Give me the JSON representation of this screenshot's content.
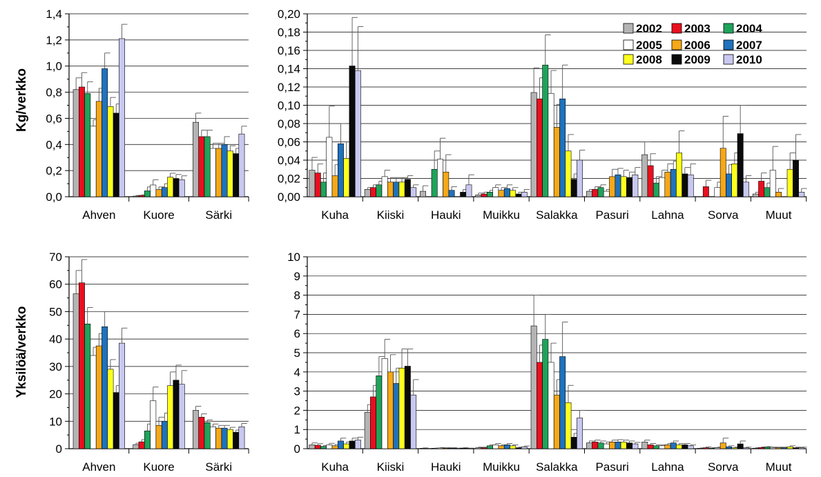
{
  "years": [
    "2002",
    "2003",
    "2004",
    "2005",
    "2006",
    "2007",
    "2008",
    "2009",
    "2010"
  ],
  "year_colors": [
    "#b4b4b4",
    "#e8101e",
    "#1fa35a",
    "#ffffff",
    "#f5a818",
    "#1f72bc",
    "#ffff1e",
    "#0a0a0a",
    "#c8c8f0"
  ],
  "ylabel_top": "Kg/verkko",
  "ylabel_bottom": "Yksilöä/verkko",
  "chart_data": [
    {
      "type": "bar",
      "id": "A",
      "categories": [
        "Ahven",
        "Kuore",
        "Särki"
      ],
      "ylim": [
        0,
        1.4
      ],
      "yticks": [
        "0,0",
        "0,2",
        "0,4",
        "0,6",
        "0,8",
        "1,0",
        "1,2",
        "1,4"
      ],
      "series": [
        {
          "name": "2002",
          "values": [
            0.82,
            0.005,
            0.57
          ],
          "errors": [
            0.09,
            0.005,
            0.07
          ]
        },
        {
          "name": "2003",
          "values": [
            0.84,
            0.01,
            0.46
          ],
          "errors": [
            0.11,
            0.005,
            0.05
          ]
        },
        {
          "name": "2004",
          "values": [
            0.79,
            0.045,
            0.46
          ],
          "errors": [
            0.09,
            0.03,
            0.05
          ]
        },
        {
          "name": "2005",
          "values": [
            0.54,
            0.09,
            0.37
          ],
          "errors": [
            0.05,
            0.04,
            0.04
          ]
        },
        {
          "name": "2006",
          "values": [
            0.73,
            0.055,
            0.37
          ],
          "errors": [
            0.1,
            0.02,
            0.04
          ]
        },
        {
          "name": "2007",
          "values": [
            0.98,
            0.07,
            0.4
          ],
          "errors": [
            0.12,
            0.03,
            0.06
          ]
        },
        {
          "name": "2008",
          "values": [
            0.69,
            0.15,
            0.35
          ],
          "errors": [
            0.07,
            0.03,
            0.04
          ]
        },
        {
          "name": "2009",
          "values": [
            0.64,
            0.14,
            0.33
          ],
          "errors": [
            0.07,
            0.03,
            0.04
          ]
        },
        {
          "name": "2010",
          "values": [
            1.21,
            0.13,
            0.48
          ],
          "errors": [
            0.11,
            0.03,
            0.06
          ]
        }
      ]
    },
    {
      "type": "bar",
      "id": "B",
      "categories": [
        "Kuha",
        "Kiiski",
        "Hauki",
        "Muikku",
        "Salakka",
        "Pasuri",
        "Lahna",
        "Sorva",
        "Muut"
      ],
      "ylim": [
        0,
        0.2
      ],
      "yticks": [
        "0,00",
        "0,02",
        "0,04",
        "0,06",
        "0,08",
        "0,10",
        "0,12",
        "0,14",
        "0,16",
        "0,18",
        "0,20"
      ],
      "legend": "top-right",
      "series": [
        {
          "name": "2002",
          "values": [
            0.029,
            0.008,
            0.006,
            0.002,
            0.114,
            0.006,
            0.046,
            0,
            0.003
          ],
          "errors": [
            0.014,
            0.002,
            0.006,
            0.002,
            0.027,
            0.002,
            0.014,
            0,
            0.002
          ]
        },
        {
          "name": "2003",
          "values": [
            0.026,
            0.01,
            0,
            0.003,
            0.107,
            0.008,
            0.034,
            0.011,
            0.017
          ],
          "errors": [
            0.01,
            0.003,
            0,
            0.002,
            0.023,
            0.003,
            0.013,
            0.007,
            0.009
          ]
        },
        {
          "name": "2004",
          "values": [
            0.016,
            0.013,
            0.03,
            0.005,
            0.144,
            0.01,
            0.015,
            0,
            0.01
          ],
          "errors": [
            0.01,
            0.004,
            0.02,
            0.002,
            0.033,
            0.003,
            0.007,
            0,
            0.005
          ]
        },
        {
          "name": "2005",
          "values": [
            0.065,
            0.022,
            0.041,
            0.01,
            0.113,
            0.006,
            0.021,
            0.01,
            0.029
          ],
          "errors": [
            0.034,
            0.007,
            0.023,
            0.003,
            0.025,
            0.002,
            0.008,
            0.006,
            0.026
          ]
        },
        {
          "name": "2006",
          "values": [
            0.023,
            0.016,
            0.027,
            0.007,
            0.076,
            0.022,
            0.027,
            0.053,
            0.005
          ],
          "errors": [
            0.012,
            0.005,
            0.019,
            0.003,
            0.025,
            0.008,
            0.009,
            0.035,
            0.004
          ]
        },
        {
          "name": "2007",
          "values": [
            0.058,
            0.016,
            0.007,
            0.009,
            0.107,
            0.024,
            0.03,
            0.025,
            0
          ],
          "errors": [
            0.022,
            0.005,
            0.004,
            0.004,
            0.037,
            0.007,
            0.009,
            0.01,
            0
          ]
        },
        {
          "name": "2008",
          "values": [
            0.042,
            0.016,
            0,
            0.007,
            0.05,
            0.022,
            0.048,
            0.036,
            0.03
          ],
          "errors": [
            0.018,
            0.005,
            0,
            0.003,
            0.018,
            0.007,
            0.024,
            0.012,
            0.018
          ]
        },
        {
          "name": "2009",
          "values": [
            0.143,
            0.019,
            0.005,
            0.003,
            0.019,
            0.021,
            0.025,
            0.069,
            0.04
          ],
          "errors": [
            0.053,
            0.004,
            0.003,
            0.002,
            0.006,
            0.006,
            0.007,
            0.031,
            0.028
          ]
        },
        {
          "name": "2010",
          "values": [
            0.138,
            0.01,
            0.013,
            0.005,
            0.04,
            0.024,
            0.024,
            0.016,
            0.005
          ],
          "errors": [
            0.048,
            0.003,
            0.011,
            0.003,
            0.011,
            0.008,
            0.012,
            0.007,
            0.004
          ]
        }
      ]
    },
    {
      "type": "bar",
      "id": "C",
      "categories": [
        "Ahven",
        "Kuore",
        "Särki"
      ],
      "ylim": [
        0,
        70
      ],
      "yticks": [
        "0",
        "10",
        "20",
        "30",
        "40",
        "50",
        "60",
        "70"
      ],
      "series": [
        {
          "name": "2002",
          "values": [
            56.5,
            1.5,
            14
          ],
          "errors": [
            8.5,
            0.5,
            1.5
          ]
        },
        {
          "name": "2003",
          "values": [
            60.5,
            2.5,
            11.5
          ],
          "errors": [
            8.5,
            0.8,
            1.2
          ]
        },
        {
          "name": "2004",
          "values": [
            45.5,
            6.5,
            9.5
          ],
          "errors": [
            6,
            2.5,
            1
          ]
        },
        {
          "name": "2005",
          "values": [
            34,
            17.5,
            8
          ],
          "errors": [
            3,
            5,
            1
          ]
        },
        {
          "name": "2006",
          "values": [
            37.5,
            8.5,
            7.5
          ],
          "errors": [
            4.5,
            3,
            1
          ]
        },
        {
          "name": "2007",
          "values": [
            44.5,
            10,
            7.5
          ],
          "errors": [
            5.5,
            3,
            1
          ]
        },
        {
          "name": "2008",
          "values": [
            29,
            23,
            7
          ],
          "errors": [
            3.5,
            5,
            0.8
          ]
        },
        {
          "name": "2009",
          "values": [
            20.5,
            25,
            6
          ],
          "errors": [
            2.5,
            5.5,
            0.8
          ]
        },
        {
          "name": "2010",
          "values": [
            38.5,
            23.5,
            8
          ],
          "errors": [
            5.5,
            5,
            1.2
          ]
        }
      ]
    },
    {
      "type": "bar",
      "id": "D",
      "categories": [
        "Kuha",
        "Kiiski",
        "Hauki",
        "Muikku",
        "Salakka",
        "Pasuri",
        "Lahna",
        "Sorva",
        "Muut"
      ],
      "ylim": [
        0,
        10
      ],
      "yticks": [
        "0",
        "1",
        "2",
        "3",
        "4",
        "5",
        "6",
        "7",
        "8",
        "9",
        "10"
      ],
      "series": [
        {
          "name": "2002",
          "values": [
            0.2,
            1.9,
            0.02,
            0.05,
            6.4,
            0.3,
            0.35,
            0.02,
            0.03
          ],
          "errors": [
            0.1,
            0.4,
            0.02,
            0.03,
            1.6,
            0.1,
            0.1,
            0.02,
            0.02
          ]
        },
        {
          "name": "2003",
          "values": [
            0.18,
            2.7,
            0.01,
            0.05,
            4.5,
            0.35,
            0.2,
            0.05,
            0.06
          ],
          "errors": [
            0.08,
            0.6,
            0.01,
            0.03,
            0.9,
            0.1,
            0.07,
            0.04,
            0.03
          ]
        },
        {
          "name": "2004",
          "values": [
            0.12,
            3.8,
            0.02,
            0.15,
            5.7,
            0.3,
            0.15,
            0.03,
            0.08
          ],
          "errors": [
            0.05,
            1,
            0.01,
            0.05,
            1.3,
            0.1,
            0.05,
            0.02,
            0.03
          ]
        },
        {
          "name": "2005",
          "values": [
            0.2,
            4.7,
            0.04,
            0.2,
            4.5,
            0.25,
            0.15,
            0.05,
            0.05
          ],
          "errors": [
            0.08,
            1,
            0.02,
            0.07,
            1,
            0.1,
            0.05,
            0.03,
            0.03
          ]
        },
        {
          "name": "2006",
          "values": [
            0.15,
            4,
            0.03,
            0.15,
            2.8,
            0.35,
            0.2,
            0.3,
            0.05
          ],
          "errors": [
            0.07,
            0.9,
            0.02,
            0.05,
            0.8,
            0.1,
            0.07,
            0.25,
            0.03
          ]
        },
        {
          "name": "2007",
          "values": [
            0.4,
            3.4,
            0.03,
            0.2,
            4.8,
            0.35,
            0.3,
            0.1,
            0.05
          ],
          "errors": [
            0.15,
            0.8,
            0.02,
            0.07,
            1.8,
            0.12,
            0.1,
            0.05,
            0.03
          ]
        },
        {
          "name": "2008",
          "values": [
            0.25,
            4.2,
            0.02,
            0.15,
            2.4,
            0.35,
            0.2,
            0.05,
            0.1
          ],
          "errors": [
            0.1,
            1,
            0.01,
            0.05,
            0.9,
            0.1,
            0.07,
            0.03,
            0.05
          ]
        },
        {
          "name": "2009",
          "values": [
            0.4,
            4.3,
            0.03,
            0.05,
            0.6,
            0.3,
            0.2,
            0.25,
            0.05
          ],
          "errors": [
            0.15,
            0.9,
            0.02,
            0.03,
            0.2,
            0.1,
            0.07,
            0.15,
            0.03
          ]
        },
        {
          "name": "2010",
          "values": [
            0.45,
            2.8,
            0.02,
            0.1,
            1.6,
            0.25,
            0.15,
            0.05,
            0.05
          ],
          "errors": [
            0.15,
            0.8,
            0.01,
            0.04,
            0.4,
            0.08,
            0.05,
            0.03,
            0.03
          ]
        }
      ]
    }
  ]
}
